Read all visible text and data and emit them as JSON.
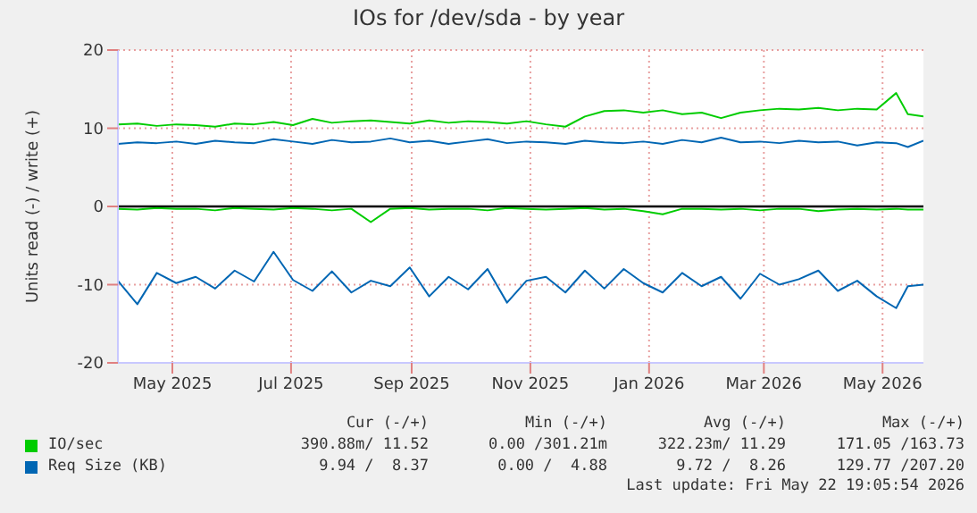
{
  "chart_data": {
    "type": "line",
    "title": "IOs for /dev/sda - by year",
    "ylabel": "Units read (-) / write (+)",
    "x": [
      "2025-04-03",
      "2025-04-13",
      "2025-04-23",
      "2025-05-03",
      "2025-05-13",
      "2025-05-23",
      "2025-06-02",
      "2025-06-12",
      "2025-06-22",
      "2025-07-02",
      "2025-07-12",
      "2025-07-22",
      "2025-08-01",
      "2025-08-11",
      "2025-08-21",
      "2025-08-31",
      "2025-09-10",
      "2025-09-20",
      "2025-09-30",
      "2025-10-10",
      "2025-10-20",
      "2025-10-30",
      "2025-11-09",
      "2025-11-19",
      "2025-11-29",
      "2025-12-09",
      "2025-12-19",
      "2025-12-29",
      "2026-01-08",
      "2026-01-18",
      "2026-01-28",
      "2026-02-07",
      "2026-02-17",
      "2026-02-27",
      "2026-03-09",
      "2026-03-19",
      "2026-03-29",
      "2026-04-08",
      "2026-04-18",
      "2026-04-28",
      "2026-05-08",
      "2026-05-14",
      "2026-05-22"
    ],
    "series": [
      {
        "color": "#00cc00",
        "values": [
          -0.3,
          -0.4,
          -0.2,
          -0.3,
          -0.3,
          -0.5,
          -0.2,
          -0.3,
          -0.4,
          -0.2,
          -0.3,
          -0.5,
          -0.3,
          -2.0,
          -0.3,
          -0.2,
          -0.4,
          -0.3,
          -0.3,
          -0.5,
          -0.2,
          -0.3,
          -0.4,
          -0.3,
          -0.2,
          -0.4,
          -0.3,
          -0.6,
          -1.0,
          -0.3,
          -0.3,
          -0.4,
          -0.3,
          -0.5,
          -0.3,
          -0.3,
          -0.6,
          -0.4,
          -0.3,
          -0.4,
          -0.3,
          -0.4,
          -0.4
        ]
      },
      {
        "name": "IO/sec",
        "color": "#00cc00",
        "values": [
          10.5,
          10.6,
          10.3,
          10.5,
          10.4,
          10.2,
          10.6,
          10.5,
          10.8,
          10.4,
          11.2,
          10.7,
          10.9,
          11.0,
          10.8,
          10.6,
          11.0,
          10.7,
          10.9,
          10.8,
          10.6,
          10.9,
          10.5,
          10.2,
          11.5,
          12.2,
          12.3,
          12.0,
          12.3,
          11.8,
          12.0,
          11.3,
          12.0,
          12.3,
          12.5,
          12.4,
          12.6,
          12.3,
          12.5,
          12.4,
          14.5,
          11.8,
          11.5
        ]
      },
      {
        "color": "#0066b3",
        "values": [
          -9.5,
          -12.5,
          -8.5,
          -9.8,
          -9.0,
          -10.5,
          -8.2,
          -9.6,
          -5.8,
          -9.4,
          -10.8,
          -8.3,
          -11.0,
          -9.5,
          -10.2,
          -7.8,
          -11.5,
          -9.0,
          -10.6,
          -8.0,
          -12.3,
          -9.5,
          -9.0,
          -11.0,
          -8.2,
          -10.5,
          -8.0,
          -9.8,
          -11.0,
          -8.5,
          -10.2,
          -9.0,
          -11.8,
          -8.6,
          -10.0,
          -9.3,
          -8.2,
          -10.8,
          -9.5,
          -11.5,
          -13.0,
          -10.2,
          -10.0
        ]
      },
      {
        "name": "Req Size (KB)",
        "color": "#0066b3",
        "values": [
          8.0,
          8.2,
          8.1,
          8.3,
          8.0,
          8.4,
          8.2,
          8.1,
          8.6,
          8.3,
          8.0,
          8.5,
          8.2,
          8.3,
          8.7,
          8.2,
          8.4,
          8.0,
          8.3,
          8.6,
          8.1,
          8.3,
          8.2,
          8.0,
          8.4,
          8.2,
          8.1,
          8.3,
          8.0,
          8.5,
          8.2,
          8.8,
          8.2,
          8.3,
          8.1,
          8.4,
          8.2,
          8.3,
          7.8,
          8.2,
          8.1,
          7.6,
          8.4
        ]
      }
    ],
    "xlim": [
      "2025-04-03",
      "2026-05-22"
    ],
    "xticks": [
      {
        "value": "2025-05-01",
        "label": "May 2025"
      },
      {
        "value": "2025-07-01",
        "label": "Jul 2025"
      },
      {
        "value": "2025-09-01",
        "label": "Sep 2025"
      },
      {
        "value": "2025-11-01",
        "label": "Nov 2025"
      },
      {
        "value": "2026-01-01",
        "label": "Jan 2026"
      },
      {
        "value": "2026-03-01",
        "label": "Mar 2026"
      },
      {
        "value": "2026-05-01",
        "label": "May 2026"
      }
    ],
    "ylim": [
      -20,
      20
    ],
    "yticks": [
      -20,
      -10,
      0,
      10,
      20
    ],
    "grid": true,
    "legend": "bottom left",
    "marker": "none",
    "line_style": "solid",
    "ref_lines": [
      {
        "axis": "y",
        "value": 0,
        "color": "#000000"
      }
    ],
    "annotations": [
      "Cur (-/+)",
      "Min (-/+)",
      "Avg (-/+)",
      "Max (-/+)",
      "390.88m/ 11.52",
      "0.00 /301.21m",
      "322.23m/ 11.29",
      "171.05 /163.73",
      "9.94 /  8.37",
      "0.00 /  4.88",
      "9.72 /  8.26",
      "129.77 /207.20",
      "Last update: Fri May 22 19:05:54 2026"
    ]
  }
}
